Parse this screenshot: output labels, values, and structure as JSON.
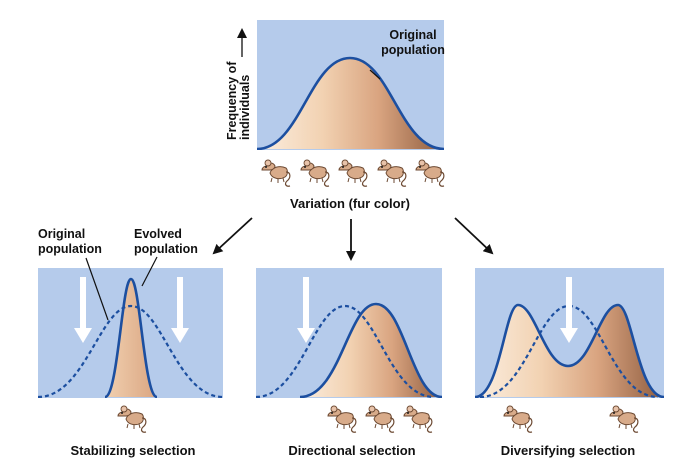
{
  "top": {
    "y_axis_label": [
      "Frequency of",
      "individuals"
    ],
    "curve_label": [
      "Original",
      "population"
    ],
    "x_axis_label": "Variation (fur color)"
  },
  "stabilizing": {
    "original_label": [
      "Original",
      "population"
    ],
    "evolved_label": [
      "Evolved",
      "population"
    ],
    "caption": "Stabilizing selection"
  },
  "directional": {
    "caption": "Directional selection"
  },
  "diversifying": {
    "caption": "Diversifying selection"
  },
  "colors": {
    "panel_bg": "#b5cbeb",
    "curve_line": "#1c4fa0",
    "fill_light": "#f6dcc2",
    "fill_dark": "#9b6a4c",
    "selection_arrow": "#ffffff"
  },
  "icons": [
    "mouse-icon",
    "selection-arrow-icon",
    "flow-arrow-icon"
  ]
}
